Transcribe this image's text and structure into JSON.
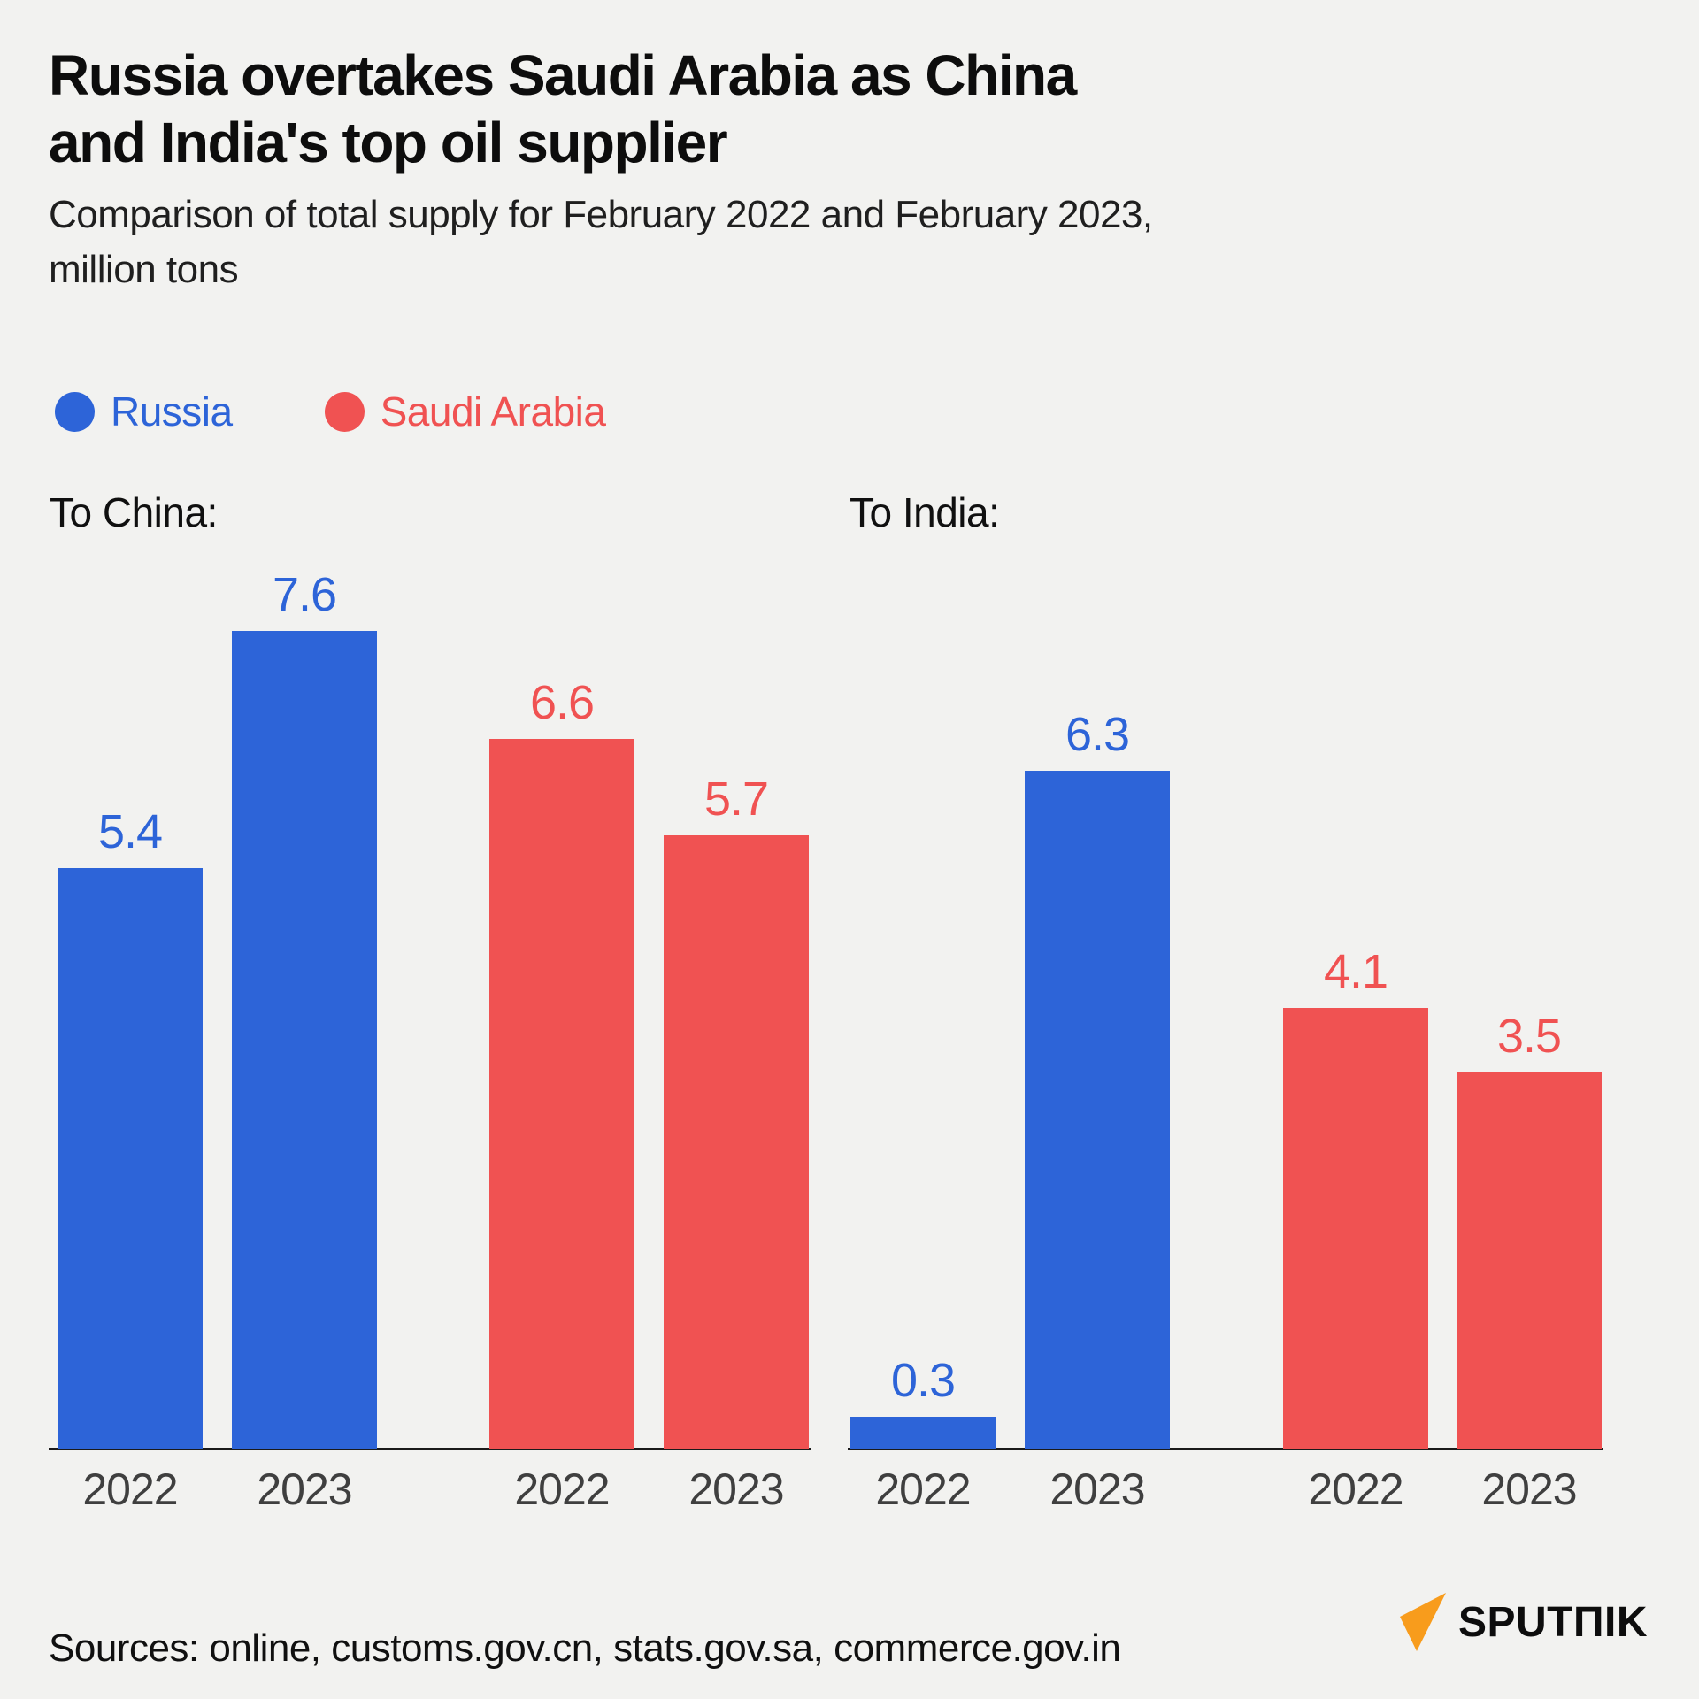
{
  "header": {
    "title_lines": [
      "Russia overtakes Saudi Arabia as China",
      "and India's top oil supplier"
    ],
    "subtitle_lines": [
      "Comparison of total supply for February 2022 and February 2023,",
      "million tons"
    ]
  },
  "legend": {
    "items": [
      {
        "label": "Russia",
        "color": "#2D64D8"
      },
      {
        "label": "Saudi Arabia",
        "color": "#F05252"
      }
    ]
  },
  "chart_data": {
    "type": "bar",
    "unit": "million tons",
    "period_compared": [
      "February 2022",
      "February 2023"
    ],
    "series_colors": {
      "Russia": "#2D64D8",
      "Saudi Arabia": "#F05252"
    },
    "value_axis_hidden": true,
    "grid": false,
    "groups": [
      {
        "label": "To China:",
        "bars": [
          {
            "series": "Russia",
            "year": "2022",
            "value": 5.4
          },
          {
            "series": "Russia",
            "year": "2023",
            "value": 7.6
          },
          {
            "series": "Saudi Arabia",
            "year": "2022",
            "value": 6.6
          },
          {
            "series": "Saudi Arabia",
            "year": "2023",
            "value": 5.7
          }
        ]
      },
      {
        "label": "To India:",
        "bars": [
          {
            "series": "Russia",
            "year": "2022",
            "value": 0.3
          },
          {
            "series": "Russia",
            "year": "2023",
            "value": 6.3
          },
          {
            "series": "Saudi Arabia",
            "year": "2022",
            "value": 4.1
          },
          {
            "series": "Saudi Arabia",
            "year": "2023",
            "value": 3.5
          }
        ]
      }
    ]
  },
  "footer": {
    "sources": "Sources: online, customs.gov.cn, stats.gov.sa, commerce.gov.in",
    "logo_text": "SPUTПIK",
    "logo_color": "#F89C1C"
  },
  "colors": {
    "background": "#F2F2F0",
    "title": "#0D0D0D",
    "axis_line": "#1A1A1A",
    "year_label": "#3F3F3F"
  }
}
